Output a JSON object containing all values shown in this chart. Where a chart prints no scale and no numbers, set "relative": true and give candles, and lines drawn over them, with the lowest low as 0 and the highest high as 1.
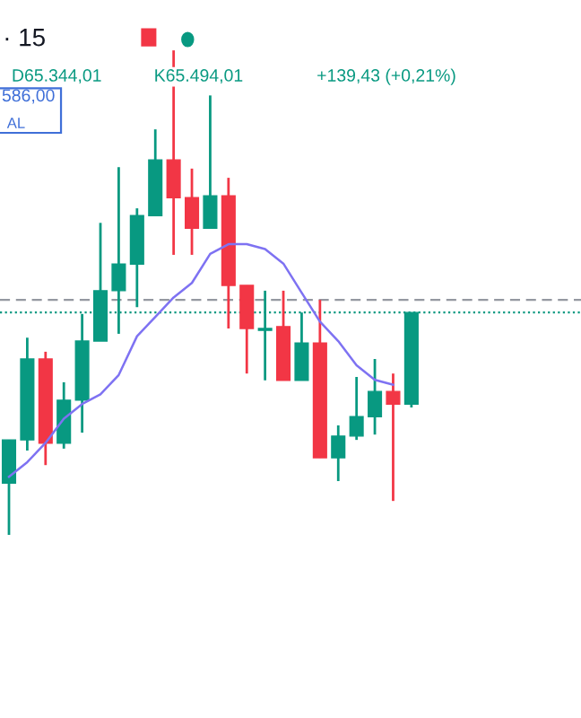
{
  "chart_data": {
    "type": "candlestick",
    "relative": true,
    "categories": [
      null,
      null,
      null,
      null,
      null,
      null,
      null,
      null,
      null,
      null,
      null,
      null,
      null,
      null,
      null,
      null,
      null,
      null,
      null,
      null,
      null,
      null,
      null
    ],
    "ohlc": [
      [
        0.107,
        0.196,
        0,
        0.196
      ],
      [
        0.196,
        0.407,
        0.174,
        0.363
      ],
      [
        0.363,
        0.378,
        0.144,
        0.189
      ],
      [
        0.189,
        0.315,
        0.178,
        0.278
      ],
      [
        0.278,
        0.456,
        0.211,
        0.4
      ],
      [
        0.4,
        0.644,
        0.4,
        0.504
      ],
      [
        0.504,
        0.759,
        0.415,
        0.559
      ],
      [
        0.559,
        0.674,
        0.47,
        0.659
      ],
      [
        0.659,
        0.837,
        0.659,
        0.774
      ],
      [
        0.774,
        1,
        0.578,
        0.696
      ],
      [
        0.696,
        0.756,
        0.578,
        0.633
      ],
      [
        0.633,
        0.907,
        0.633,
        0.7
      ],
      [
        0.7,
        0.737,
        0.426,
        0.515
      ],
      [
        0.515,
        0.515,
        0.333,
        0.426
      ],
      [
        0.422,
        0.504,
        0.319,
        0.426
      ],
      [
        0.43,
        0.504,
        0.319,
        0.319
      ],
      [
        0.319,
        0.459,
        0.319,
        0.396
      ],
      [
        0.396,
        0.485,
        0.159,
        0.159
      ],
      [
        0.159,
        0.226,
        0.111,
        0.204
      ],
      [
        0.204,
        0.326,
        0.196,
        0.244
      ],
      [
        0.244,
        0.363,
        0.207,
        0.296
      ],
      [
        0.296,
        0.333,
        0.07,
        0.27
      ],
      [
        0.27,
        0.459,
        0.263,
        0.459
      ]
    ],
    "colors": [
      "#089981",
      "#089981",
      "#f23645",
      "#089981",
      "#089981",
      "#089981",
      "#089981",
      "#089981",
      "#089981",
      "#f23645",
      "#f23645",
      "#089981",
      "#f23645",
      "#f23645",
      "#089981",
      "#f23645",
      "#089981",
      "#f23645",
      "#089981",
      "#089981",
      "#089981",
      "#f23645",
      "#089981"
    ],
    "series": [
      {
        "type": "line",
        "color": "#7e72f2",
        "values": [
          0.12,
          0.15,
          0.19,
          0.24,
          0.27,
          0.29,
          0.33,
          0.41,
          0.45,
          0.49,
          0.52,
          0.58,
          0.6,
          0.6,
          0.59,
          0.56,
          0.5,
          0.44,
          0.4,
          0.35,
          0.32,
          0.31,
          null
        ]
      }
    ],
    "ref_lines": [
      {
        "axis": "y",
        "value": 0.485,
        "color": "#9598a1",
        "line_style": "dashed"
      },
      {
        "axis": "y",
        "value": 0.459,
        "color": "#089981",
        "line_style": "dotted"
      }
    ],
    "annotations": [
      "· 15",
      "D65.344,01",
      "K65.494,01",
      "+139,43 (+0,21%)",
      "586,00",
      "AL"
    ]
  }
}
